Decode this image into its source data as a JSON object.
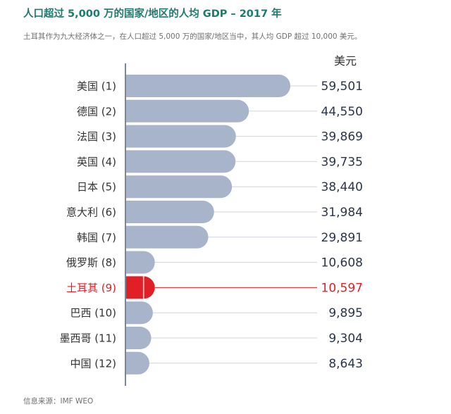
{
  "header": {
    "title": "人口超过 5,000 万的国家/地区的人均 GDP – 2017 年",
    "subtitle": "土耳其作为九大经济体之一，在人口超过 5,000 万的国家/地区当中，其人均 GDP 超过 10,000 美元。",
    "unit_label": "美元"
  },
  "footer": {
    "source": "信息来源：IMF WEO"
  },
  "colors": {
    "bar": "#a7b4c9",
    "highlight": "#e11f27",
    "label": "#333333",
    "value": "#2a3547",
    "leader": "#cfd4db",
    "axis": "#7a8699"
  },
  "chart_data": {
    "type": "bar",
    "orientation": "horizontal",
    "title": "人口超过 5,000 万的国家/地区的人均 GDP – 2017 年",
    "subtitle": "土耳其作为九大经济体之一，在人口超过 5,000 万的国家/地区当中，其人均 GDP 超过 10,000 美元。",
    "unit": "美元",
    "categories": [
      "美国 (1)",
      "德国 (2)",
      "法国 (3)",
      "英国 (4)",
      "日本 (5)",
      "意大利 (6)",
      "韩国 (7)",
      "俄罗斯 (8)",
      "土耳其 (9)",
      "巴西 (10)",
      "墨西哥 (11)",
      "中国 (12)"
    ],
    "values": [
      59501,
      44550,
      39869,
      39735,
      38440,
      31984,
      29891,
      10608,
      10597,
      9895,
      9304,
      8643
    ],
    "value_labels": [
      "59,501",
      "44,550",
      "39,869",
      "39,735",
      "38,440",
      "31,984",
      "29,891",
      "10,608",
      "10,597",
      "9,895",
      "9,304",
      "8,643"
    ],
    "highlight_category": "土耳其 (9)",
    "source": "信息来源：IMF WEO"
  }
}
